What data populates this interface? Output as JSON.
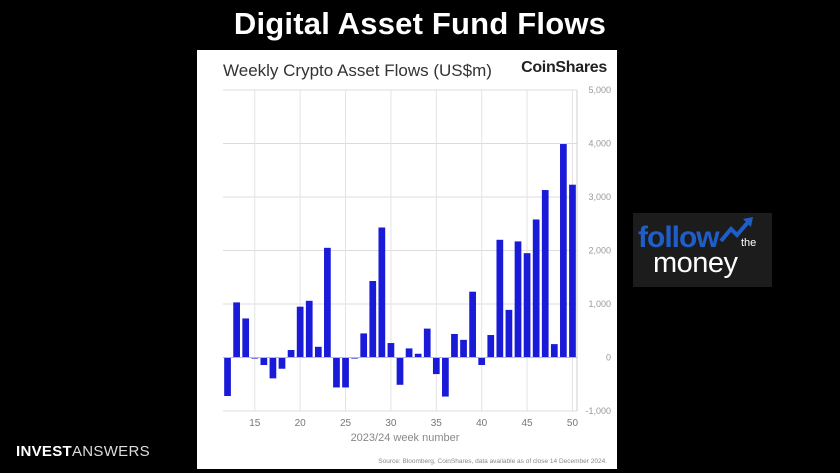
{
  "slide": {
    "title": "Digital Asset Fund Flows",
    "logo_bold": "INVEST",
    "logo_thin": "ANSWERS"
  },
  "badge": {
    "line1": "follow",
    "line2": "the",
    "line3": "money",
    "accent": "#1f5ec9"
  },
  "chart_data": {
    "type": "bar",
    "title": "Weekly Crypto Asset Flows (US$m)",
    "brand": "CoinShares",
    "xlabel": "2023/24 week number",
    "ylabel": "",
    "source": "Source: Bloomberg, CoinShares, data available as of close 14 December 2024.",
    "bar_color": "#1a1ad9",
    "x_ticks": [
      15,
      20,
      25,
      30,
      35,
      40,
      45,
      50
    ],
    "y_ticks": [
      -1000,
      0,
      1000,
      2000,
      3000,
      4000,
      5000
    ],
    "y_tick_labels": [
      "-1,000",
      "0",
      "1,000",
      "2,000",
      "3,000",
      "4,000",
      "5,000"
    ],
    "xlim": [
      11.5,
      50.5
    ],
    "ylim": [
      -1000,
      5000
    ],
    "grid": true,
    "y_axis_side": "right",
    "x": [
      12,
      13,
      14,
      15,
      16,
      17,
      18,
      19,
      20,
      21,
      22,
      23,
      24,
      25,
      26,
      27,
      28,
      29,
      30,
      31,
      32,
      33,
      34,
      35,
      36,
      37,
      38,
      39,
      40,
      41,
      42,
      43,
      44,
      45,
      46,
      47,
      48,
      49,
      50
    ],
    "values": [
      -720,
      1030,
      730,
      -20,
      -140,
      -390,
      -210,
      140,
      950,
      1060,
      200,
      2050,
      -560,
      -560,
      -20,
      450,
      1430,
      2430,
      270,
      -510,
      170,
      70,
      540,
      -310,
      -730,
      440,
      330,
      1230,
      -140,
      420,
      2200,
      890,
      2170,
      1950,
      2580,
      3130,
      250,
      3990,
      3230
    ]
  }
}
